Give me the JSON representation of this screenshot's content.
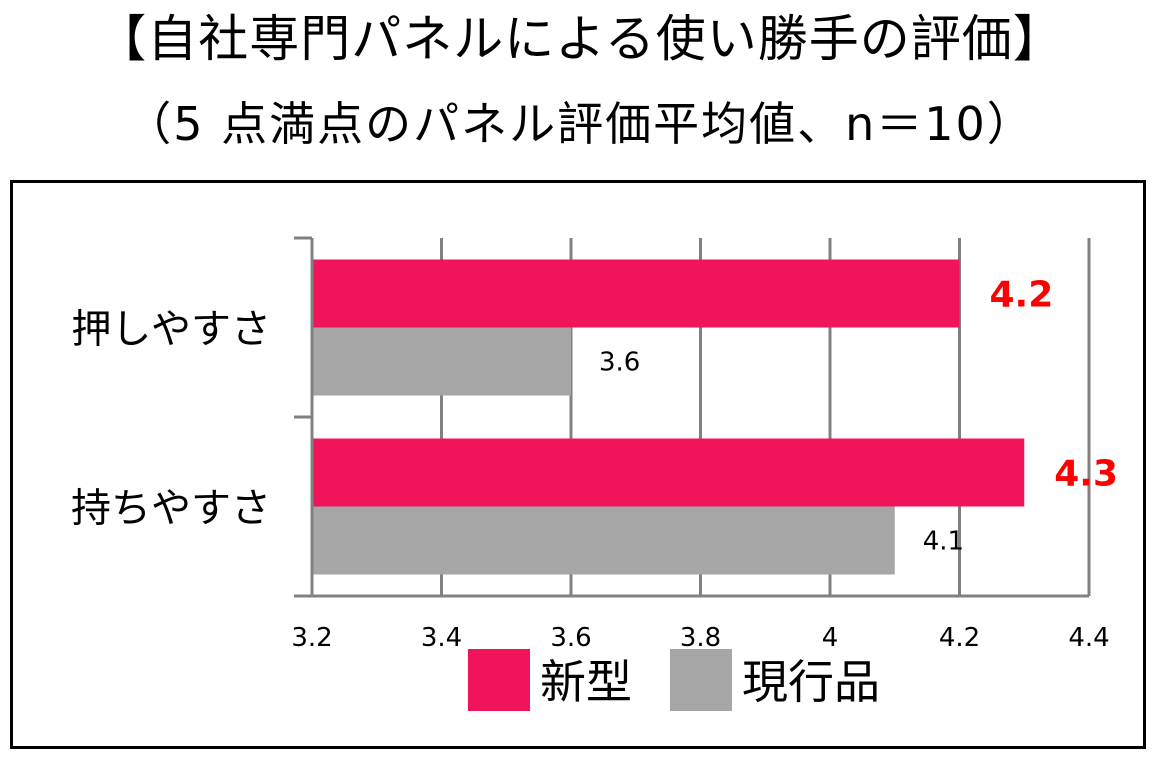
{
  "title": {
    "line1": "【自社専門パネルによる使い勝手の評価】",
    "line2": "（5 点満点のパネル評価平均値、n＝10）"
  },
  "colors": {
    "new_model": "#f0145a",
    "current_model": "#a6a6a6",
    "new_model_label": "#ff0000",
    "gridline": "#808080",
    "frame": "#000000"
  },
  "chart_data": {
    "type": "bar",
    "orientation": "horizontal",
    "categories": [
      "押しやすさ",
      "持ちやすさ"
    ],
    "series": [
      {
        "name": "新型",
        "values": [
          4.2,
          4.3
        ]
      },
      {
        "name": "現行品",
        "values": [
          3.6,
          4.1
        ]
      }
    ],
    "data_labels": {
      "新型": [
        "4.2",
        "4.3"
      ],
      "現行品": [
        "3.6",
        "4.1"
      ]
    },
    "xlim": [
      3.2,
      4.4
    ],
    "xticks": [
      "3.2",
      "3.4",
      "3.6",
      "3.8",
      "4",
      "4.2",
      "4.4"
    ],
    "grid": true,
    "legend_position": "bottom"
  }
}
